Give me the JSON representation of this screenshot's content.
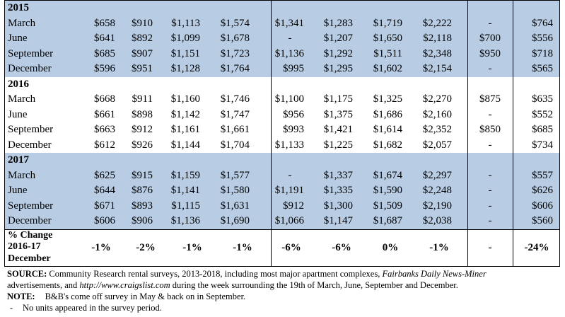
{
  "table": {
    "sections": [
      {
        "year": "2015",
        "shaded": true,
        "rows": [
          {
            "label": "March",
            "cells": [
              "$658",
              "$910",
              "$1,113",
              "$1,574",
              "$1,341",
              "$1,283",
              "$1,719",
              "$2,222",
              "-",
              "$764"
            ]
          },
          {
            "label": "June",
            "cells": [
              "$641",
              "$892",
              "$1,099",
              "$1,678",
              "-",
              "$1,207",
              "$1,650",
              "$2,118",
              "$700",
              "$556"
            ]
          },
          {
            "label": "September",
            "cells": [
              "$685",
              "$907",
              "$1,151",
              "$1,723",
              "$1,136",
              "$1,292",
              "$1,511",
              "$2,348",
              "$950",
              "$718"
            ]
          },
          {
            "label": "December",
            "cells": [
              "$596",
              "$951",
              "$1,128",
              "$1,764",
              "$995",
              "$1,295",
              "$1,602",
              "$2,154",
              "-",
              "$565"
            ]
          }
        ]
      },
      {
        "year": "2016",
        "shaded": false,
        "rows": [
          {
            "label": "March",
            "cells": [
              "$668",
              "$911",
              "$1,160",
              "$1,746",
              "$1,100",
              "$1,175",
              "$1,325",
              "$2,270",
              "$875",
              "$635"
            ]
          },
          {
            "label": "June",
            "cells": [
              "$661",
              "$898",
              "$1,142",
              "$1,747",
              "$956",
              "$1,375",
              "$1,686",
              "$2,160",
              "-",
              "$552"
            ]
          },
          {
            "label": "September",
            "cells": [
              "$663",
              "$912",
              "$1,161",
              "$1,661",
              "$993",
              "$1,421",
              "$1,614",
              "$2,352",
              "$850",
              "$685"
            ]
          },
          {
            "label": "December",
            "cells": [
              "$612",
              "$926",
              "$1,144",
              "$1,704",
              "$1,133",
              "$1,225",
              "$1,682",
              "$2,057",
              "-",
              "$734"
            ]
          }
        ]
      },
      {
        "year": "2017",
        "shaded": true,
        "rows": [
          {
            "label": "March",
            "cells": [
              "$625",
              "$915",
              "$1,159",
              "$1,577",
              "-",
              "$1,337",
              "$1,674",
              "$2,297",
              "-",
              "$557"
            ]
          },
          {
            "label": "June",
            "cells": [
              "$644",
              "$876",
              "$1,141",
              "$1,580",
              "$1,191",
              "$1,335",
              "$1,590",
              "$2,248",
              "-",
              "$626"
            ]
          },
          {
            "label": "September",
            "cells": [
              "$671",
              "$893",
              "$1,115",
              "$1,631",
              "$912",
              "$1,300",
              "$1,509",
              "$2,190",
              "-",
              "$606"
            ]
          },
          {
            "label": "December",
            "cells": [
              "$606",
              "$906",
              "$1,136",
              "$1,690",
              "$1,066",
              "$1,147",
              "$1,687",
              "$2,038",
              "-",
              "$560"
            ]
          }
        ]
      }
    ],
    "pct_change": {
      "label_lines": [
        "% Change",
        "2016-17",
        "December"
      ],
      "cells": [
        "-1%",
        "-2%",
        "-1%",
        "-1%",
        "-6%",
        "-6%",
        "0%",
        "-1%",
        "-",
        "-24%"
      ]
    }
  },
  "notes": {
    "source_label": "SOURCE:",
    "source_text_1": " Community Research rental surveys, 2013-2018, including most major apartment complexes, ",
    "source_italic_1": "Fairbanks Daily News-Miner",
    "source_text_2": "advertisements, and ",
    "source_italic_2": "http://www.craigslist.com",
    "source_text_3": " during the week surrounding the 19th of March, June, September and December.",
    "note_label": "NOTE:",
    "note_text": "B&B's come off survey in May & back on in September.",
    "dash_symbol": "-",
    "dash_text": "No units appeared in the survey period."
  }
}
